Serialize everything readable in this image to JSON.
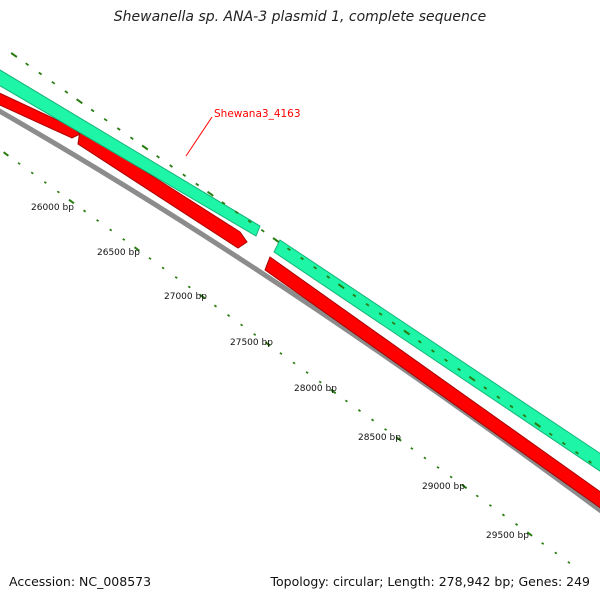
{
  "title": "Shewanella sp. ANA-3 plasmid 1, complete sequence",
  "accession_text": "Accession: NC_008573",
  "summary_text": "Topology: circular; Length: 278,942 bp; Genes: 249",
  "position_labels": [
    "26000 bp",
    "26500 bp",
    "27000 bp",
    "27500 bp",
    "28000 bp",
    "28500 bp",
    "29000 bp",
    "29500 bp"
  ],
  "highlighted_gene": {
    "name": "Shewana3_4163"
  },
  "colors": {
    "forward_track": "#1ef5a6",
    "forward_track_edge": "#14b57a",
    "reverse_genes": "#ff0000",
    "reverse_genes_edge": "#a80000",
    "backbone": "#8c8c8c",
    "tick": "#2a7d12",
    "gene_label": "#ff0000"
  },
  "icons": {
    "tick_mark": "short-diagonal-dash"
  }
}
